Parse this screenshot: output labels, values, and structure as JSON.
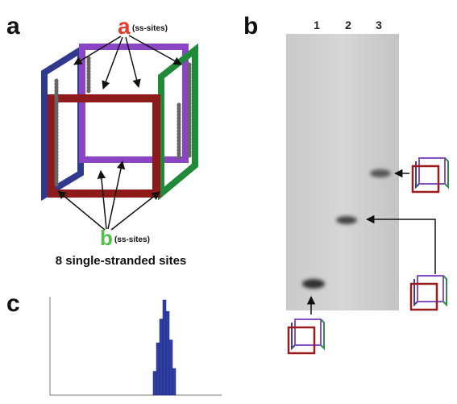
{
  "panel_a": {
    "label": "a",
    "top_site_letter": "a",
    "top_site_note": "(ss-sites)",
    "bottom_site_letter": "b",
    "bottom_site_note": "(ss-sites)",
    "caption": "8 single-stranded sites"
  },
  "panel_b": {
    "label": "b",
    "lanes": [
      "1",
      "2",
      "3"
    ]
  },
  "panel_c": {
    "label": "c",
    "histogram": {
      "values": [
        25,
        55,
        80,
        100,
        88,
        58,
        28
      ]
    }
  }
}
